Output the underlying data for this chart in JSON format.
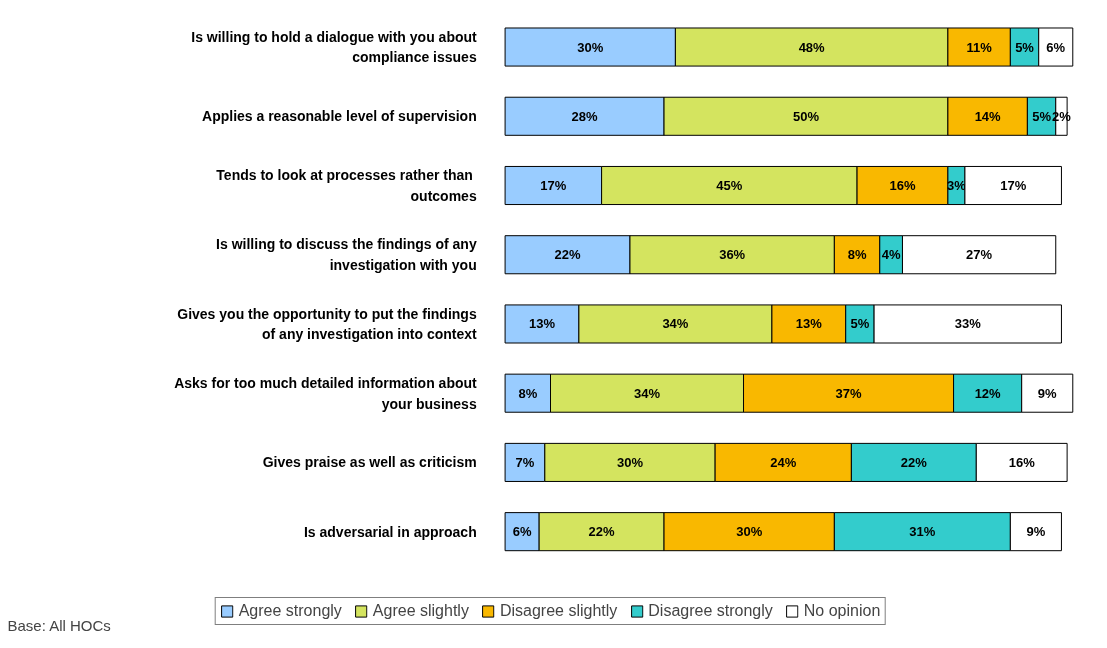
{
  "chart_data": {
    "type": "bar",
    "orientation": "horizontal",
    "stacked": true,
    "legend": "bottom",
    "grid": false,
    "categories": [
      "Is willing to hold a dialogue with you about compliance issues",
      "Applies a reasonable level of supervision",
      "Tends to  look at processes rather than outcomes",
      "Is willing to discuss the findings of any investigation with you",
      "Gives you the opportunity to put the findings of any investigation into context",
      "Asks for too much detailed information about your business",
      "Gives praise as well as criticism",
      "Is adversarial in approach"
    ],
    "series": [
      {
        "name": "Agree strongly",
        "color": "#99ccff",
        "values": [
          30,
          28,
          17,
          22,
          13,
          8,
          7,
          6
        ],
        "value_labels": [
          "30%",
          "28%",
          "17%",
          "22%",
          "13%",
          "8%",
          "7%",
          "6%"
        ]
      },
      {
        "name": "Agree slightly",
        "color": "#d4e45f",
        "values": [
          48,
          50,
          45,
          36,
          34,
          34,
          30,
          22
        ],
        "value_labels": [
          "48%",
          "50%",
          "45%",
          "36%",
          "34%",
          "34%",
          "30%",
          "22%"
        ]
      },
      {
        "name": "Disagree slightly",
        "color": "#f9b800",
        "values": [
          11,
          14,
          16,
          8,
          13,
          37,
          24,
          30
        ],
        "value_labels": [
          "11%",
          "14%",
          "16%",
          "8%",
          "13%",
          "37%",
          "24%",
          "30%"
        ]
      },
      {
        "name": "Disagree strongly",
        "color": "#33cccc",
        "values": [
          5,
          5,
          3,
          4,
          5,
          12,
          22,
          31
        ],
        "value_labels": [
          "5%",
          "5%",
          "3%",
          "4%",
          "5%",
          "12%",
          "22%",
          "31%"
        ]
      },
      {
        "name": "No opinion",
        "color": "#ffffff",
        "values": [
          6,
          2,
          17,
          27,
          33,
          9,
          16,
          9
        ],
        "value_labels": [
          "6%",
          "2%",
          "17%",
          "27%",
          "33%",
          "9%",
          "16%",
          "9%"
        ]
      }
    ],
    "annotations": [
      "Base: All HOCs"
    ]
  }
}
